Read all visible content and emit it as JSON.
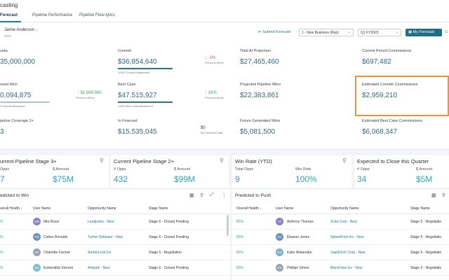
{
  "header": {
    "title": "casting"
  },
  "tabs": [
    {
      "label": "Forecast"
    },
    {
      "label": "Pipeline Performance"
    },
    {
      "label": "Pipeline Flow-lytics"
    }
  ],
  "user": {
    "name": "Jamie Anderson",
    "role": "CRO"
  },
  "actions": {
    "submit_label": "Submit Forecast",
    "business_select": "1 - New Business (Rep)",
    "period_select": "Q1 FY2023",
    "my_forecast_label": "My Forecast",
    "edge_label": "G"
  },
  "kpis": {
    "quota": {
      "label": "uota",
      "value": "35,000,000"
    },
    "commit": {
      "label": "Commit",
      "value": "$36,854,640",
      "sub": "105% Commit Attainment",
      "attainment": 1.05
    },
    "commit_delta": {
      "value": "-1%",
      "sub": "Previous Week"
    },
    "ai_projection": {
      "label": "Total AI Projection",
      "value": "$27,465,460"
    },
    "current_commissions": {
      "label": "Current Period Commissions",
      "value": "$697,482"
    },
    "closed_won": {
      "label": "osed Won",
      "value": "0,094,875",
      "sub": "% Actual Attainment"
    },
    "closed_delta": {
      "value": "$1,969,560",
      "sub": "Previous Week"
    },
    "best_case": {
      "label": "Best Case",
      "value": "$47,515,927",
      "sub": "136% Best Case Attainment",
      "attainment": 1.36
    },
    "best_case_delta": {
      "value": "10%",
      "sub": "Previous Week"
    },
    "projected_wins": {
      "label": "Projected Pipeline Wins",
      "value": "$22,383,861"
    },
    "est_commit_commissions": {
      "label": "Estimated Commit Commissions",
      "value": "$2,959,210"
    },
    "pipeline_coverage": {
      "label": "peline Coverage 2+",
      "value": "3"
    },
    "in_forecast": {
      "label": "In Forecast",
      "value": "$15,535,045"
    },
    "in_forecast_delta": {
      "value": "$0",
      "sub": "No Previous Data"
    },
    "future_wins": {
      "label": "Future Generated Wins",
      "value": "$5,081,500"
    },
    "est_best_case_commissions": {
      "label": "Estimated Best Case Commissions",
      "value": "$6,068,347"
    }
  },
  "cards": [
    {
      "title": "urrent Pipeline Stage 3+",
      "label1": "Opps",
      "value1": "7",
      "label2": "$ Amount",
      "value2": "$75M"
    },
    {
      "title": "Current Pipeline Stage 2+",
      "label1": "# Opps",
      "value1": "432",
      "label2": "$ Amount",
      "value2": "$99M"
    },
    {
      "title": "Win Rate (YTD)",
      "label1": "Total Opps",
      "value1": "9",
      "label2": "Win Rate",
      "value2": "100%"
    },
    {
      "title": "Expected to Close this Quarter",
      "label1": "# Opps",
      "value1": "34",
      "label2": "$ Amount",
      "value2": "$5M"
    }
  ],
  "tables": {
    "win": {
      "title": "edicted to Win",
      "columns": [
        "verall Health ↓",
        "User Name",
        "Opportunity Name",
        "Stage Name"
      ],
      "rows": [
        {
          "health": "%",
          "initials": "MR",
          "user": "Mia Rossi",
          "opp": "Leadpolax - New",
          "stage": "Stage 6 - Closed Pending"
        },
        {
          "health": "%",
          "initials": "CR",
          "user": "Colton Ronaldo",
          "opp": "Turner Software - New",
          "stage": "Stage 6 - Closed Pending"
        },
        {
          "health": "%",
          "initials": "CF",
          "user": "Charlotte Fischer",
          "opp": "AarberLock Inc",
          "stage": "Stage 5 - Negotiation"
        },
        {
          "health": "%",
          "initials": "EV",
          "user": "Esmeralda Vincent",
          "opp": "Airtpark - New",
          "stage": "Stage 6 - Closed Pending"
        }
      ]
    },
    "push": {
      "title": "Predicted to Push",
      "columns": [
        "Overall Health ↓",
        "User Name",
        "Opportunity Name",
        "Stage Name"
      ],
      "rows": [
        {
          "health": "83%",
          "initials": "AT",
          "user": "Anthony Thomas",
          "opp": "Scita Corp - New",
          "stage": "Stage 5 - Negotiatio"
        },
        {
          "health": "82%",
          "initials": "EJ",
          "user": "Eleanor Jones",
          "opp": "SplashFest Inc - New",
          "stage": "Stage 5 - Negotiatio"
        },
        {
          "health": "82%",
          "initials": "KW",
          "user": "Kaito Watanabe",
          "opp": "VapidTech Corp - New",
          "stage": "Stage 5 - Negotiatio"
        },
        {
          "health": "82%",
          "initials": "PS",
          "user": "Phillipe Simon",
          "opp": "BlackView Inc - New",
          "stage": "Stage 5 - Negotiatio"
        }
      ]
    }
  },
  "colors": {
    "accent": "#1e7a8c",
    "highlight": "#e8953a",
    "positive": "#3aa564",
    "negative": "#d9534f",
    "card_value": "#2fa7bd"
  }
}
